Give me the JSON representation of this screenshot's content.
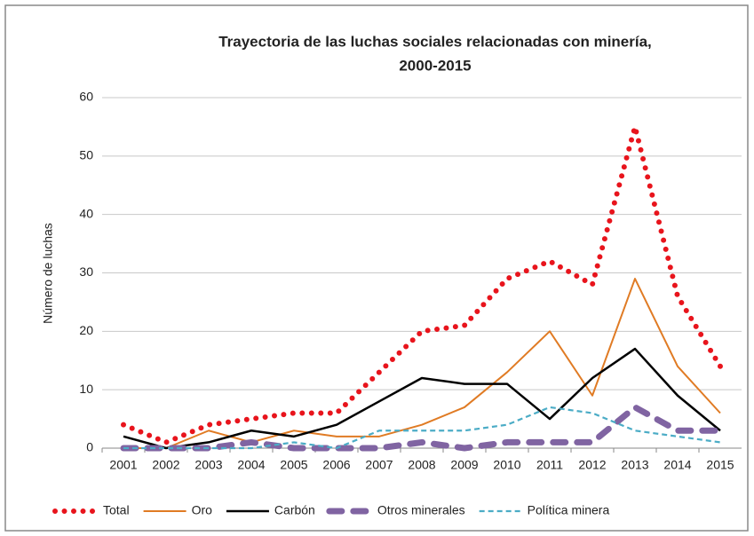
{
  "chart_data": {
    "type": "line",
    "title": [
      "Trayectoria de las luchas sociales relacionadas con minería,",
      "2000-2015"
    ],
    "y_label": "Número de luchas",
    "categories": [
      "2001",
      "2002",
      "2003",
      "2004",
      "2005",
      "2006",
      "2007",
      "2008",
      "2009",
      "2010",
      "2011",
      "2012",
      "2013",
      "2014",
      "2015"
    ],
    "series": [
      {
        "name": "Total",
        "color": "#e8141c",
        "values": [
          4,
          1,
          4,
          5,
          6,
          6,
          13,
          20,
          21,
          29,
          32,
          28,
          55,
          26,
          14
        ]
      },
      {
        "name": "Oro",
        "color": "#e07b24",
        "values": [
          0,
          0,
          3,
          1,
          3,
          2,
          2,
          4,
          7,
          13,
          20,
          9,
          29,
          14,
          6
        ]
      },
      {
        "name": "Carbón",
        "color": "#000000",
        "values": [
          2,
          0,
          1,
          3,
          2,
          4,
          8,
          12,
          11,
          11,
          5,
          12,
          17,
          9,
          3
        ]
      },
      {
        "name": "Otros minerales",
        "color": "#8064a2",
        "values": [
          0,
          0,
          0,
          1,
          0,
          0,
          0,
          1,
          0,
          1,
          1,
          1,
          7,
          3,
          3
        ]
      },
      {
        "name": "Política minera",
        "color": "#4bacc6",
        "values": [
          0,
          0,
          0,
          0,
          1,
          0,
          3,
          3,
          3,
          4,
          7,
          6,
          3,
          2,
          1
        ]
      }
    ],
    "ylim": [
      0,
      60
    ],
    "yticks": [
      0,
      10,
      20,
      30,
      40,
      50,
      60
    ],
    "grid": true,
    "legend": "bottom"
  }
}
